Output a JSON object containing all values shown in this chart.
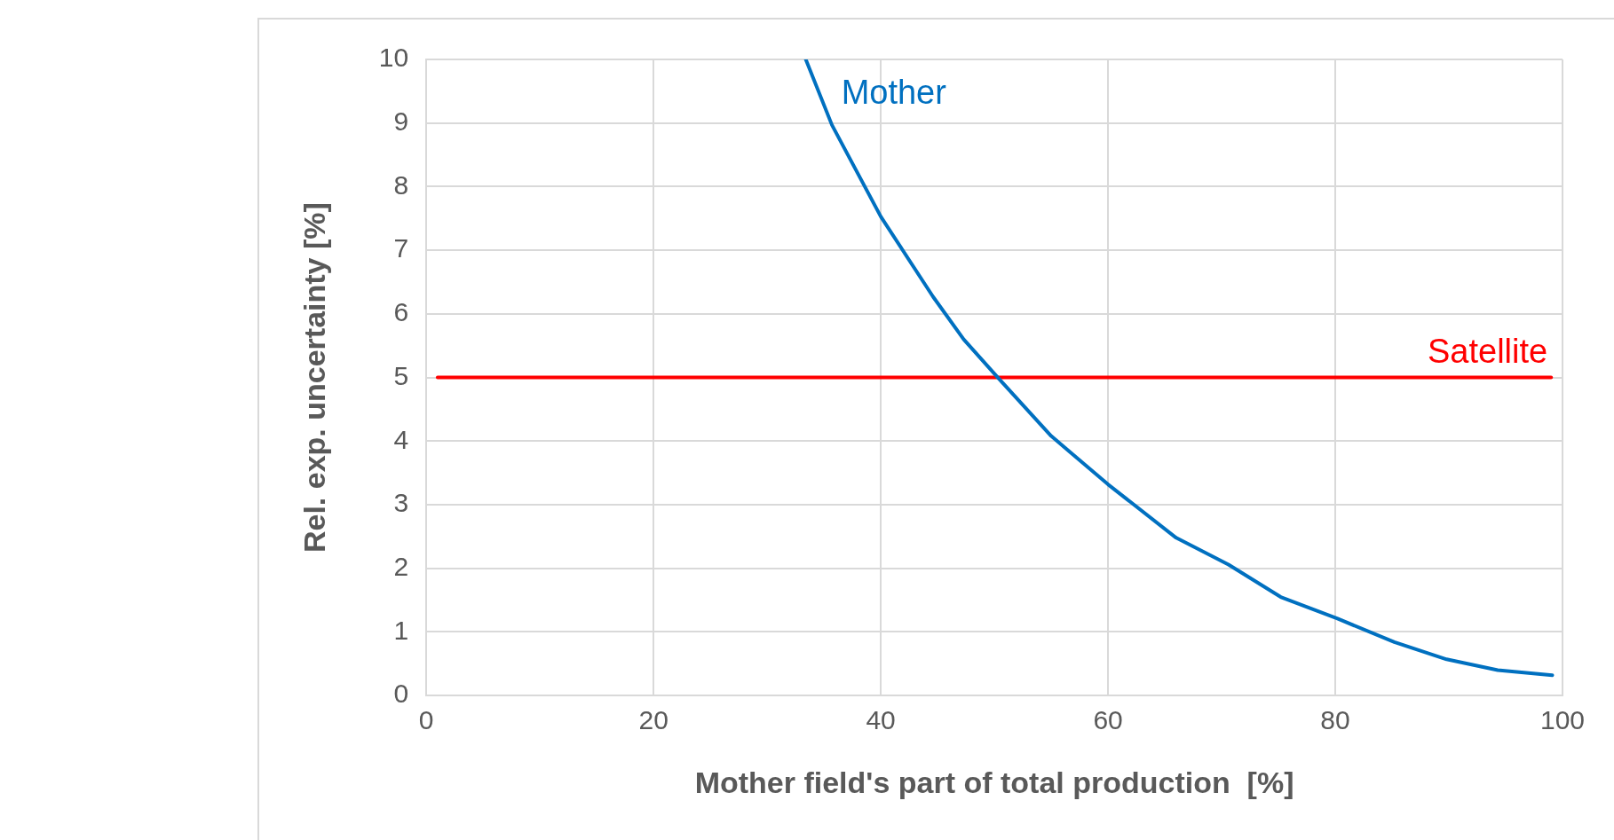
{
  "chart_data": {
    "type": "line",
    "xlabel": "Mother field's part of total production  [%]",
    "ylabel": "Rel. exp. uncertainty [%]",
    "xlim": [
      0,
      100
    ],
    "xticks": [
      0,
      20,
      40,
      60,
      80,
      100
    ],
    "ylim": [
      0,
      10
    ],
    "yticks": [
      0,
      1,
      2,
      3,
      4,
      5,
      6,
      7,
      8,
      9,
      10
    ],
    "grid": true,
    "legend": false,
    "marker": "none",
    "line_style": "solid",
    "series": [
      {
        "name": "Mother",
        "color": "#0070c0",
        "x": [
          33.4,
          35.7,
          40,
          44.6,
          47.3,
          50.3,
          55,
          60,
          66,
          70.6,
          75.2,
          80.2,
          85.2,
          89.8,
          94.3,
          99.1
        ],
        "values": [
          10,
          8.97,
          7.53,
          6.27,
          5.6,
          5,
          4.08,
          3.32,
          2.48,
          2.06,
          1.55,
          1.21,
          0.84,
          0.57,
          0.4,
          0.32
        ]
      },
      {
        "name": "Satellite",
        "color": "#ff0000",
        "x": [
          1,
          99
        ],
        "values": [
          5,
          5
        ]
      }
    ]
  }
}
